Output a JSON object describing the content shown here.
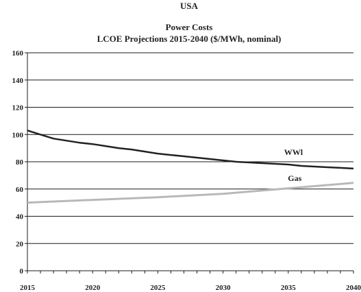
{
  "chart_data": {
    "type": "line",
    "title": "USA",
    "subtitle_1": "Power Costs",
    "subtitle_2": "LCOE Projections 2015-2040 ($/MWh, nominal)",
    "xlabel": "",
    "ylabel": "",
    "xlim": [
      2015,
      2040
    ],
    "ylim": [
      0,
      160
    ],
    "x_ticks": [
      2015,
      2020,
      2025,
      2030,
      2035,
      2040
    ],
    "y_ticks": [
      0,
      20,
      40,
      60,
      80,
      100,
      120,
      140,
      160
    ],
    "grid": "horizontal",
    "series": [
      {
        "name": "WWl",
        "color": "#222222",
        "x": [
          2015,
          2016,
          2017,
          2018,
          2019,
          2020,
          2021,
          2022,
          2023,
          2024,
          2025,
          2026,
          2027,
          2028,
          2029,
          2030,
          2031,
          2032,
          2033,
          2034,
          2035,
          2036,
          2037,
          2038,
          2039,
          2040
        ],
        "y": [
          103,
          100,
          97,
          95.5,
          94,
          93,
          91.5,
          90,
          89,
          87.5,
          86,
          85,
          84,
          83,
          82,
          81,
          80,
          79.5,
          79,
          78.5,
          78,
          77,
          76.5,
          76,
          75.5,
          75
        ]
      },
      {
        "name": "Gas",
        "color": "#b8b8b8",
        "x": [
          2015,
          2020,
          2025,
          2030,
          2035,
          2040
        ],
        "y": [
          50,
          52,
          54,
          56.5,
          60.5,
          64.5
        ]
      }
    ]
  }
}
